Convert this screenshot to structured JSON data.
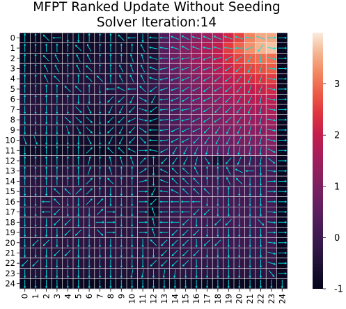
{
  "chart_data": {
    "type": "heatmap",
    "title_lines": [
      "MFPT Ranked Update Without Seeding",
      "Solver Iteration:14"
    ],
    "rows": 25,
    "cols": 25,
    "x_tick_labels": [
      "0",
      "1",
      "2",
      "3",
      "4",
      "5",
      "6",
      "7",
      "8",
      "9",
      "10",
      "11",
      "12",
      "13",
      "14",
      "15",
      "16",
      "17",
      "18",
      "19",
      "20",
      "21",
      "22",
      "23",
      "24"
    ],
    "y_tick_labels": [
      "0",
      "1",
      "2",
      "3",
      "4",
      "5",
      "6",
      "7",
      "8",
      "9",
      "10",
      "11",
      "12",
      "13",
      "14",
      "15",
      "16",
      "17",
      "18",
      "19",
      "20",
      "21",
      "22",
      "23",
      "24"
    ],
    "colorbar": {
      "min": -1,
      "max": 4,
      "tick_labels": [
        "-1",
        "0",
        "1",
        "2",
        "3"
      ],
      "tick_values": [
        -1,
        0,
        1,
        2,
        3
      ],
      "colormap": "rocket"
    },
    "grid_lines": true,
    "grid_color": "#ffffff",
    "arrow_color": "#00e5e5",
    "values": [
      [
        -0.9,
        -0.9,
        -0.9,
        -0.8,
        -0.8,
        -0.8,
        -0.8,
        -0.8,
        -0.8,
        -0.8,
        -0.7,
        -0.7,
        -0.7,
        0.3,
        0.6,
        0.8,
        1.2,
        1.5,
        1.7,
        2.2,
        2.6,
        3.2,
        3.5,
        3.5,
        -0.9
      ],
      [
        -0.8,
        -0.8,
        -0.8,
        -0.8,
        -0.8,
        -0.8,
        -0.7,
        -0.7,
        -0.7,
        -0.7,
        -0.7,
        -0.7,
        -0.6,
        0.4,
        0.8,
        1.1,
        1.4,
        1.7,
        2.0,
        2.5,
        2.9,
        3.3,
        3.6,
        3.7,
        -0.9
      ],
      [
        -0.8,
        -0.8,
        -0.8,
        -0.7,
        -0.7,
        -0.7,
        -0.6,
        -0.6,
        -0.6,
        -0.6,
        -0.6,
        -0.5,
        -0.5,
        0.5,
        0.8,
        1.1,
        1.4,
        1.6,
        1.9,
        2.3,
        2.6,
        2.9,
        3.0,
        3.0,
        -0.9
      ],
      [
        -0.7,
        -0.7,
        -0.7,
        -0.6,
        -0.6,
        -0.6,
        -0.5,
        -0.5,
        -0.5,
        -0.5,
        -0.4,
        -0.4,
        -0.3,
        0.4,
        0.7,
        1.0,
        1.3,
        1.5,
        1.8,
        2.1,
        2.4,
        2.6,
        2.7,
        2.8,
        -0.9
      ],
      [
        -0.6,
        -0.6,
        -0.6,
        -0.5,
        -0.5,
        -0.5,
        -0.5,
        -0.4,
        -0.4,
        -0.4,
        -0.3,
        -0.3,
        -0.2,
        0.3,
        0.6,
        0.9,
        1.1,
        1.4,
        1.6,
        1.9,
        2.1,
        2.3,
        2.4,
        2.5,
        -0.9
      ],
      [
        -0.5,
        -0.5,
        -0.5,
        -0.5,
        -0.5,
        -0.4,
        -0.4,
        -0.4,
        -0.4,
        -0.3,
        -0.2,
        -0.2,
        -0.1,
        0.2,
        0.5,
        0.8,
        1.0,
        1.2,
        1.4,
        1.7,
        1.9,
        2.0,
        2.1,
        2.2,
        -0.9
      ],
      [
        -0.4,
        -0.4,
        -0.4,
        -0.4,
        -0.4,
        -0.4,
        -0.4,
        -0.4,
        -0.4,
        -0.3,
        -0.3,
        -0.2,
        -0.5,
        0.1,
        0.4,
        0.6,
        0.9,
        1.1,
        1.3,
        1.5,
        1.7,
        1.8,
        1.9,
        1.9,
        -0.9
      ],
      [
        -0.4,
        -0.4,
        -0.4,
        -0.4,
        -0.4,
        -0.4,
        -0.5,
        -0.5,
        -0.5,
        -0.4,
        -0.4,
        -0.3,
        -0.7,
        0.1,
        0.3,
        0.5,
        0.8,
        1.0,
        1.1,
        1.3,
        1.4,
        1.6,
        1.6,
        1.7,
        -0.9
      ],
      [
        -0.4,
        -0.4,
        -0.4,
        -0.4,
        -0.4,
        -0.5,
        -0.6,
        -0.6,
        -0.6,
        -0.5,
        -0.4,
        -0.3,
        -0.8,
        0.0,
        0.3,
        0.5,
        0.7,
        0.9,
        1.0,
        1.2,
        1.3,
        1.4,
        1.4,
        1.5,
        -0.9
      ],
      [
        -0.5,
        -0.5,
        -0.5,
        -0.5,
        -0.5,
        -0.6,
        -0.6,
        -0.7,
        -0.6,
        -0.6,
        -0.5,
        -0.4,
        -0.8,
        0.0,
        0.2,
        0.4,
        0.6,
        0.8,
        0.9,
        1.0,
        1.1,
        1.2,
        1.2,
        1.3,
        -0.9
      ],
      [
        -0.6,
        -0.7,
        -0.7,
        -0.7,
        -0.7,
        -0.7,
        -0.7,
        -0.8,
        -0.7,
        -0.7,
        -0.6,
        -0.5,
        -0.8,
        -0.1,
        0.1,
        0.3,
        0.5,
        0.6,
        0.7,
        0.8,
        0.9,
        1.0,
        1.0,
        1.1,
        -0.9
      ],
      [
        -0.8,
        -0.8,
        -0.8,
        -0.8,
        -0.8,
        -0.8,
        -0.8,
        -0.9,
        -0.8,
        -0.8,
        -0.7,
        -0.6,
        -0.8,
        -0.1,
        0.0,
        0.2,
        0.3,
        0.5,
        0.5,
        0.6,
        0.7,
        0.8,
        0.8,
        0.9,
        -0.9
      ],
      [
        -0.6,
        -0.6,
        -0.6,
        -0.6,
        -0.6,
        -0.6,
        -0.6,
        -0.7,
        -0.6,
        -0.6,
        -0.5,
        -0.5,
        -0.7,
        -0.5,
        -0.4,
        -0.3,
        -0.2,
        -0.2,
        -0.6,
        -0.2,
        0.0,
        0.1,
        0.1,
        0.2,
        -0.9
      ],
      [
        -0.4,
        -0.4,
        -0.4,
        -0.4,
        -0.4,
        -0.4,
        -0.4,
        -0.5,
        -0.4,
        -0.4,
        -0.4,
        -0.4,
        -0.7,
        -0.4,
        -0.3,
        -0.2,
        -0.1,
        -0.1,
        -0.1,
        -0.1,
        0.0,
        0.1,
        0.1,
        0.1,
        -0.9
      ],
      [
        -0.3,
        -0.3,
        -0.3,
        -0.3,
        -0.3,
        -0.3,
        -0.3,
        -0.4,
        -0.3,
        -0.3,
        -0.3,
        -0.3,
        -0.7,
        -0.3,
        -0.2,
        -0.1,
        0.0,
        0.0,
        0.0,
        0.0,
        0.1,
        0.1,
        0.1,
        0.1,
        -0.9
      ],
      [
        -0.3,
        -0.3,
        -0.3,
        -0.3,
        -0.2,
        -0.2,
        -0.3,
        -0.3,
        -0.3,
        -0.3,
        -0.3,
        -0.3,
        -0.8,
        -0.2,
        -0.1,
        0.0,
        0.0,
        0.1,
        0.1,
        0.1,
        0.1,
        0.1,
        0.1,
        0.1,
        -0.9
      ],
      [
        -0.3,
        -0.3,
        -0.3,
        -0.2,
        -0.2,
        -0.2,
        -0.2,
        -0.3,
        -0.3,
        -0.3,
        -0.3,
        -0.3,
        -0.9,
        -0.2,
        -0.1,
        0.0,
        0.1,
        0.1,
        0.1,
        0.1,
        0.1,
        0.1,
        0.1,
        0.1,
        -0.9
      ],
      [
        -0.3,
        -0.3,
        -0.3,
        -0.2,
        -0.2,
        -0.2,
        -0.2,
        -0.2,
        -0.3,
        -0.3,
        -0.3,
        -0.3,
        -0.9,
        -0.2,
        -0.1,
        0.0,
        0.0,
        0.1,
        0.1,
        0.1,
        0.1,
        0.1,
        0.1,
        0.1,
        -0.9
      ],
      [
        -0.3,
        -0.3,
        -0.3,
        -0.3,
        -0.2,
        -0.2,
        -0.2,
        -0.2,
        -0.3,
        -0.3,
        -0.3,
        -0.3,
        -0.6,
        -0.2,
        -0.1,
        0.0,
        0.0,
        0.0,
        0.0,
        0.1,
        0.1,
        0.1,
        0.1,
        0.0,
        -0.9
      ],
      [
        -0.3,
        -0.3,
        -0.3,
        -0.3,
        -0.3,
        -0.2,
        -0.2,
        -0.2,
        -0.3,
        -0.3,
        -0.3,
        -0.3,
        -0.4,
        -0.2,
        -0.1,
        -0.1,
        0.0,
        0.0,
        0.0,
        0.0,
        0.0,
        0.0,
        0.0,
        0.0,
        -0.9
      ],
      [
        -0.4,
        -0.4,
        -0.3,
        -0.3,
        -0.3,
        -0.3,
        -0.3,
        -0.3,
        -0.3,
        -0.3,
        -0.3,
        -0.3,
        -0.3,
        -0.2,
        -0.2,
        -0.1,
        -0.1,
        -0.1,
        0.0,
        0.0,
        0.0,
        0.0,
        0.0,
        0.0,
        -0.9
      ],
      [
        -0.4,
        -0.4,
        -0.4,
        -0.4,
        -0.3,
        -0.3,
        -0.3,
        -0.3,
        -0.3,
        -0.3,
        -0.3,
        -0.3,
        -0.3,
        -0.3,
        -0.2,
        -0.2,
        -0.1,
        -0.1,
        -0.1,
        -0.1,
        -0.1,
        -0.1,
        -0.1,
        -0.1,
        -0.9
      ],
      [
        -0.5,
        -0.4,
        -0.4,
        -0.4,
        -0.4,
        -0.4,
        -0.4,
        -0.4,
        -0.4,
        -0.4,
        -0.4,
        -0.4,
        -0.4,
        -0.3,
        -0.3,
        -0.2,
        -0.2,
        -0.2,
        -0.2,
        -0.2,
        -0.2,
        -0.2,
        -0.2,
        -0.2,
        -0.9
      ],
      [
        -0.5,
        -0.5,
        -0.5,
        -0.5,
        -0.5,
        -0.5,
        -0.5,
        -0.5,
        -0.5,
        -0.5,
        -0.5,
        -0.4,
        -0.4,
        -0.4,
        -0.3,
        -0.3,
        -0.3,
        -0.3,
        -0.3,
        -0.3,
        -0.3,
        -0.3,
        -0.3,
        -0.3,
        -0.9
      ],
      [
        -0.9,
        -0.9,
        -0.9,
        -0.9,
        -0.9,
        -0.9,
        -0.9,
        -0.9,
        -0.9,
        -0.9,
        -0.9,
        -0.9,
        -0.9,
        -0.9,
        -0.9,
        -0.9,
        -0.9,
        -0.9,
        -0.9,
        -0.9,
        -0.9,
        -0.9,
        -0.9,
        -0.9,
        -0.9
      ]
    ]
  }
}
